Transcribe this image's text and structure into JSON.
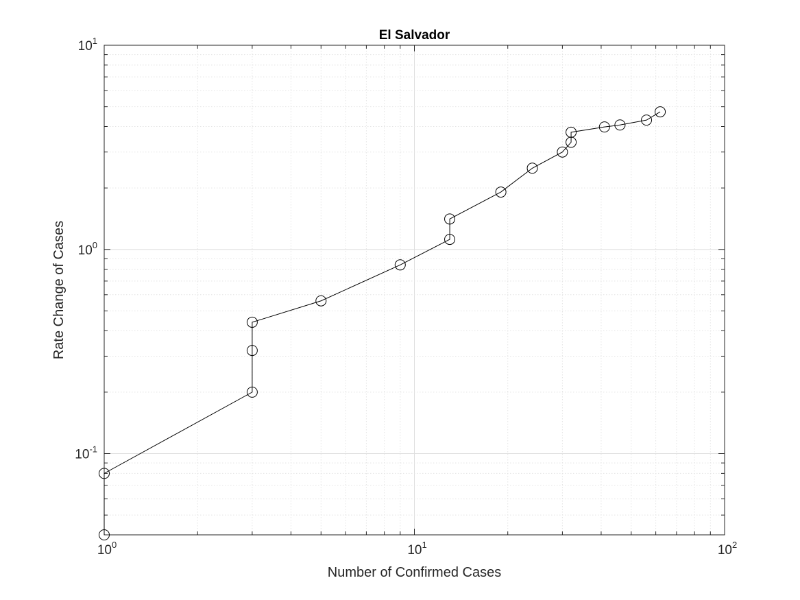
{
  "chart_data": {
    "type": "line",
    "title": "El Salvador",
    "xlabel": "Number of Confirmed Cases",
    "ylabel": "Rate Change of Cases",
    "xscale": "log",
    "yscale": "log",
    "xlim": [
      1,
      100
    ],
    "ylim": [
      0.04,
      10
    ],
    "grid": true,
    "minor_grid": true,
    "x_ticks": [
      {
        "base": "10",
        "exp": "0",
        "value": 1
      },
      {
        "base": "10",
        "exp": "1",
        "value": 10
      },
      {
        "base": "10",
        "exp": "2",
        "value": 100
      }
    ],
    "y_ticks": [
      {
        "base": "10",
        "exp": "-1",
        "value": 0.1
      },
      {
        "base": "10",
        "exp": "0",
        "value": 1
      },
      {
        "base": "10",
        "exp": "1",
        "value": 10
      }
    ],
    "series": [
      {
        "marker": "circle-open",
        "color": "#000000",
        "x": [
          1,
          1,
          3,
          3,
          3,
          5,
          9,
          13,
          13,
          19,
          24,
          30,
          32,
          32,
          41,
          46,
          56,
          62
        ],
        "y": [
          0.04,
          0.08,
          0.2,
          0.32,
          0.44,
          0.56,
          0.84,
          1.12,
          1.41,
          1.91,
          2.5,
          3.0,
          3.35,
          3.75,
          3.98,
          4.07,
          4.3,
          4.72
        ]
      }
    ]
  }
}
